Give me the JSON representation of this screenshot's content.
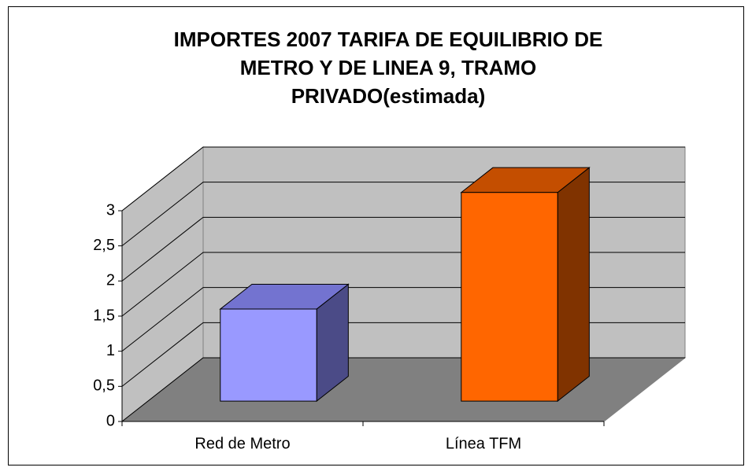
{
  "chart_data": {
    "type": "bar3d",
    "title": [
      "IMPORTES 2007 TARIFA DE EQUILIBRIO DE",
      "METRO Y DE LINEA 9, TRAMO",
      "PRIVADO(estimada)"
    ],
    "categories": [
      "Red de Metro",
      "Línea TFM"
    ],
    "values": [
      1.31,
      2.97
    ],
    "colors": [
      {
        "front": "#9999ff",
        "top": "#7373d0",
        "side": "#4b4b87"
      },
      {
        "front": "#ff6600",
        "top": "#c44e00",
        "side": "#803300"
      }
    ],
    "ylim": [
      0,
      3
    ],
    "yticks": [
      0,
      {
        "value": 0.5,
        "label": "0,5"
      },
      1,
      {
        "value": 1.5,
        "label": "1,5"
      },
      2,
      {
        "value": 2.5,
        "label": "2,5"
      },
      3
    ],
    "grid": true
  }
}
